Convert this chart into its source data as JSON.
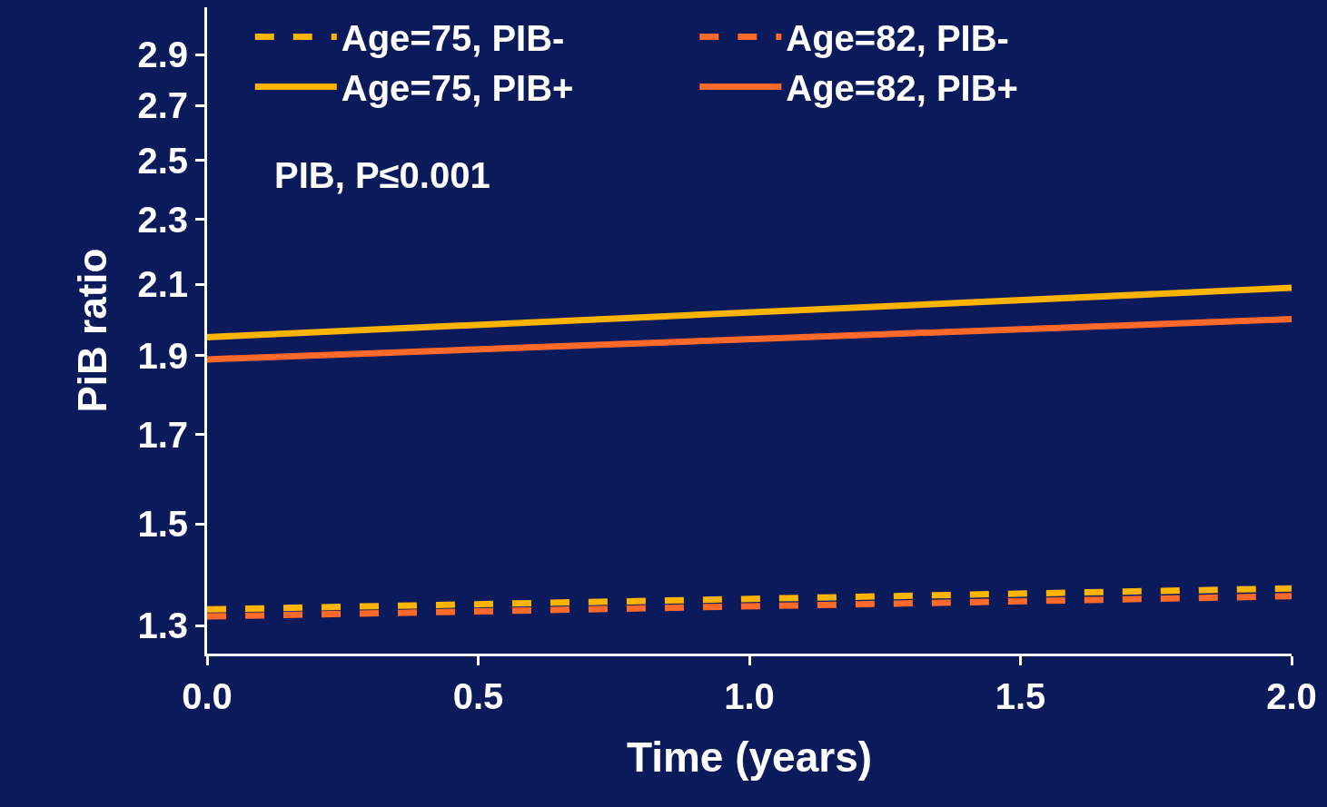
{
  "chart_data": {
    "type": "line",
    "xlabel": "Time (years)",
    "ylabel": "PiB ratio",
    "x": [
      0,
      2
    ],
    "series": [
      {
        "name": "Age=75, PIB-",
        "color": "#ffb400",
        "line_style": "dashed",
        "values": [
          1.33,
          1.37
        ]
      },
      {
        "name": "Age=82, PIB-",
        "color": "#ff6a2a",
        "line_style": "dashed",
        "values": [
          1.317,
          1.355
        ]
      },
      {
        "name": "Age=75, PIB+",
        "color": "#ffb400",
        "line_style": "solid",
        "values": [
          1.95,
          2.09
        ]
      },
      {
        "name": "Age=82, PIB+",
        "color": "#ff6a2a",
        "line_style": "solid",
        "values": [
          1.89,
          2.0
        ]
      }
    ],
    "annotations": [
      "PIB, P≤0.001"
    ],
    "log": "y",
    "xlim": [
      0,
      2
    ],
    "ylim": [
      1.25,
      3.1
    ],
    "xticks": [
      {
        "value": 0,
        "label": "0.0"
      },
      0.5,
      {
        "value": 1,
        "label": "1.0"
      },
      1.5,
      {
        "value": 2,
        "label": "2.0"
      }
    ],
    "yticks": [
      1.3,
      1.5,
      1.7,
      1.9,
      2.1,
      2.3,
      2.5,
      2.7,
      2.9
    ],
    "grid": false,
    "legend": "top"
  }
}
